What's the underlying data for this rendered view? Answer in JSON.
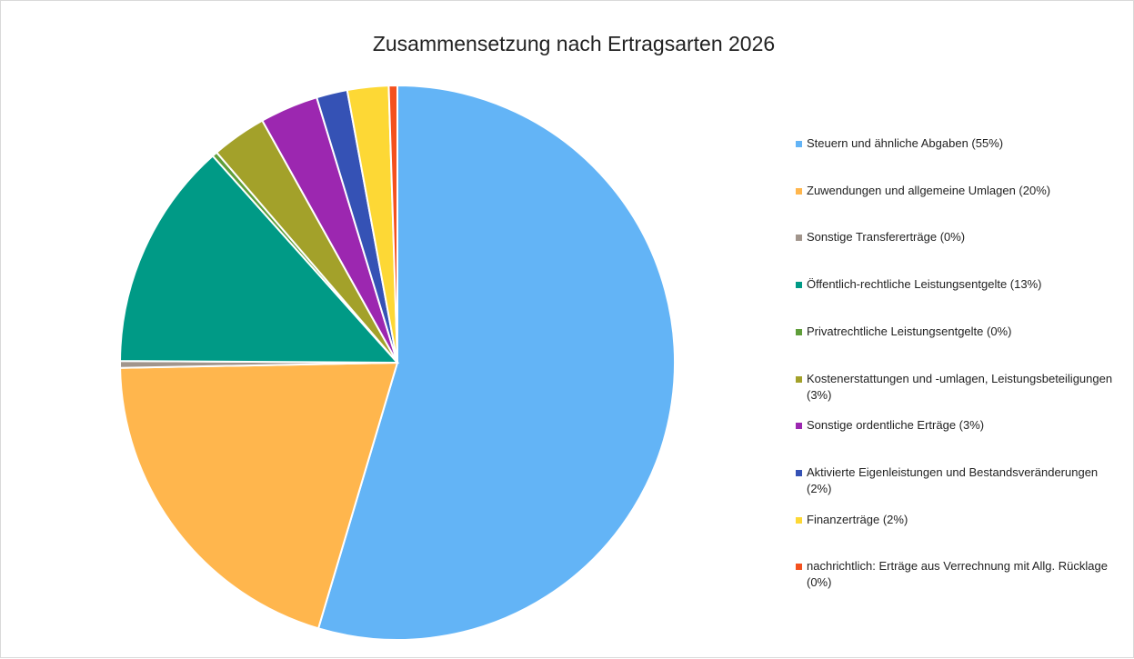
{
  "chart_data": {
    "type": "pie",
    "title": "Zusammensetzung nach Ertragsarten 2026",
    "categories": [
      "Steuern und ähnliche Abgaben (55%)",
      "Zuwendungen und allgemeine Umlagen (20%)",
      "Sonstige Transfererträge (0%)",
      "Öffentlich-rechtliche Leistungsentgelte (13%)",
      "Privatrechtliche Leistungsentgelte (0%)",
      "Kostenerstattungen und -umlagen, Leistungsbeteiligungen (3%)",
      "Sonstige ordentliche Erträge (3%)",
      "Aktivierte Eigenleistungen und Bestandsveränderungen (2%)",
      "Finanzerträge (2%)",
      "nachrichtlich: Erträge aus Verrechnung mit Allg. Rücklage (0%)"
    ],
    "values": [
      54.6,
      20.1,
      0.4,
      13.3,
      0.3,
      3.2,
      3.4,
      1.8,
      2.4,
      0.5
    ],
    "colors": [
      "#63b4f6",
      "#ffb64d",
      "#a1958c",
      "#009a86",
      "#5f9e3a",
      "#a3a12a",
      "#9c27b0",
      "#3552b5",
      "#fdd835",
      "#f4511e"
    ],
    "legend": "right"
  }
}
